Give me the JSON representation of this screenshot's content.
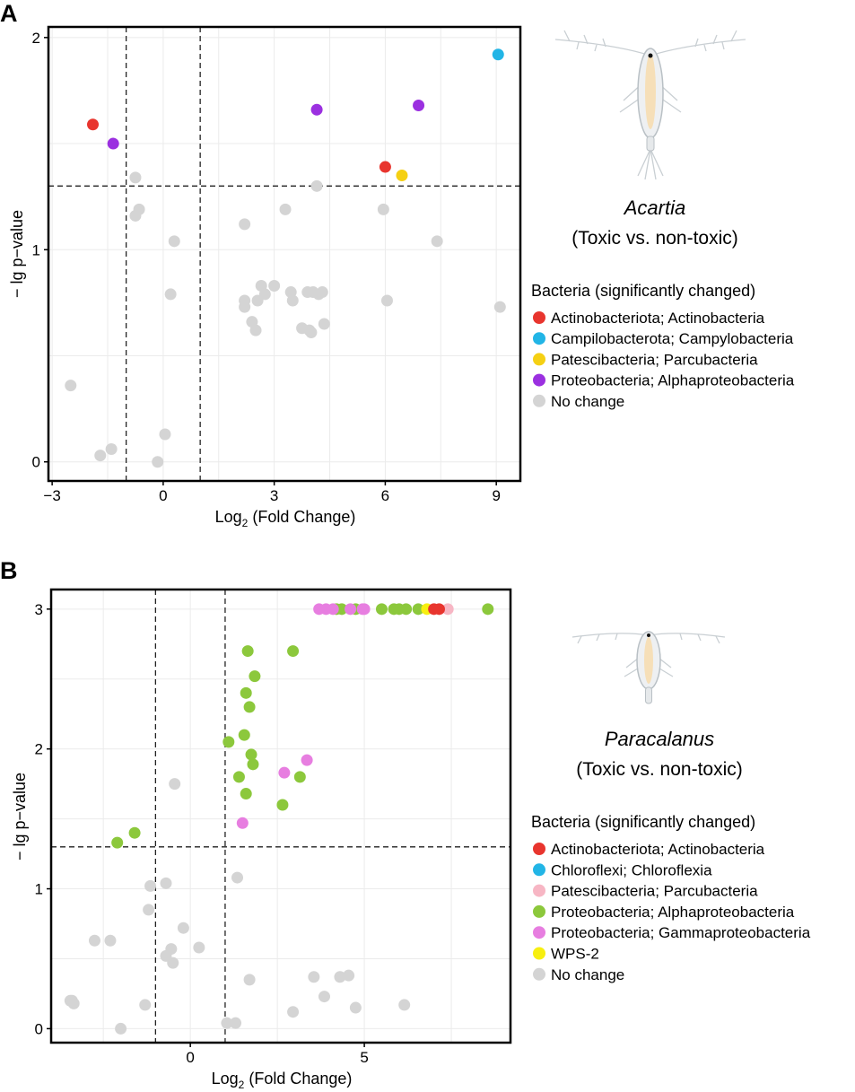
{
  "colors": {
    "actinobacteria": "#e8352e",
    "campylobacteria": "#22b5e6",
    "parcubacteria_yellow": "#f5d013",
    "alphaproteobacteria_purple": "#9b30e0",
    "parcubacteria_pink": "#f7b6c4",
    "alphaproteobacteria_green": "#8cc83c",
    "gammaproteobacteria": "#e77ee0",
    "wps2": "#f7ef10",
    "chloroflexia": "#22b5e6",
    "no_change": "#d4d4d4"
  },
  "chart_data": [
    {
      "panel_label": "A",
      "type": "scatter",
      "title": "",
      "xlabel_prefix": "Log",
      "xlabel_sub": "2",
      "xlabel_suffix": " (Fold Change)",
      "ylabel": "− lg p−value",
      "xlim": [
        -3.1,
        9.65
      ],
      "ylim": [
        -0.09,
        2.05
      ],
      "xticks": [
        -3,
        0,
        3,
        6,
        9
      ],
      "xtick_labels": [
        "−3",
        "0",
        "3",
        "6",
        "9"
      ],
      "yticks": [
        0,
        1,
        2
      ],
      "ytick_labels": [
        "0",
        "1",
        "2"
      ],
      "thresholds": {
        "vlines": [
          -1,
          1
        ],
        "hline": 1.3
      },
      "organism": "Acartia",
      "comparison": "(Toxic vs. non-toxic)",
      "legend_title": "Bacteria (significantly changed)",
      "legend": [
        {
          "label": "Actinobacteriota; Actinobacteria",
          "color": "#e8352e"
        },
        {
          "label": "Campilobacterota; Campylobacteria",
          "color": "#22b5e6"
        },
        {
          "label": "Patescibacteria; Parcubacteria",
          "color": "#f5d013"
        },
        {
          "label": "Proteobacteria; Alphaproteobacteria",
          "color": "#9b30e0"
        },
        {
          "label": "No change",
          "color": "#d4d4d4"
        }
      ],
      "series": [
        {
          "name": "No change",
          "color": "#d4d4d4",
          "points": [
            [
              -2.5,
              0.36
            ],
            [
              -1.7,
              0.03
            ],
            [
              -1.4,
              0.06
            ],
            [
              -0.15,
              0.0
            ],
            [
              0.05,
              0.13
            ],
            [
              -0.75,
              1.34
            ],
            [
              -0.75,
              1.16
            ],
            [
              -0.65,
              1.19
            ],
            [
              0.3,
              1.04
            ],
            [
              0.2,
              0.79
            ],
            [
              2.2,
              1.12
            ],
            [
              2.2,
              0.76
            ],
            [
              2.2,
              0.73
            ],
            [
              2.4,
              0.66
            ],
            [
              2.5,
              0.62
            ],
            [
              2.55,
              0.76
            ],
            [
              2.65,
              0.83
            ],
            [
              2.75,
              0.79
            ],
            [
              3.0,
              0.83
            ],
            [
              3.3,
              1.19
            ],
            [
              3.45,
              0.8
            ],
            [
              3.5,
              0.76
            ],
            [
              3.75,
              0.63
            ],
            [
              3.9,
              0.8
            ],
            [
              3.95,
              0.62
            ],
            [
              4.0,
              0.61
            ],
            [
              4.05,
              0.8
            ],
            [
              4.2,
              0.79
            ],
            [
              4.3,
              0.8
            ],
            [
              4.35,
              0.65
            ],
            [
              4.15,
              1.3
            ],
            [
              5.95,
              1.19
            ],
            [
              6.05,
              0.76
            ],
            [
              7.4,
              1.04
            ],
            [
              9.1,
              0.73
            ]
          ]
        },
        {
          "name": "Actinobacteriota; Actinobacteria",
          "color": "#e8352e",
          "points": [
            [
              -1.9,
              1.59
            ],
            [
              6.0,
              1.39
            ]
          ]
        },
        {
          "name": "Campilobacterota; Campylobacteria",
          "color": "#22b5e6",
          "points": [
            [
              9.05,
              1.92
            ]
          ]
        },
        {
          "name": "Patescibacteria; Parcubacteria",
          "color": "#f5d013",
          "points": [
            [
              6.45,
              1.35
            ]
          ]
        },
        {
          "name": "Proteobacteria; Alphaproteobacteria",
          "color": "#9b30e0",
          "points": [
            [
              -1.35,
              1.5
            ],
            [
              4.15,
              1.66
            ],
            [
              6.9,
              1.68
            ]
          ]
        }
      ]
    },
    {
      "panel_label": "B",
      "type": "scatter",
      "title": "",
      "xlabel_prefix": "Log",
      "xlabel_sub": "2",
      "xlabel_suffix": " (Fold Change)",
      "ylabel": "− lg p−value",
      "xlim": [
        -4.0,
        9.2
      ],
      "ylim": [
        -0.1,
        3.14
      ],
      "xticks": [
        0,
        5
      ],
      "xtick_labels": [
        "0",
        "5"
      ],
      "yticks": [
        0,
        1,
        2,
        3
      ],
      "ytick_labels": [
        "0",
        "1",
        "2",
        "3"
      ],
      "thresholds": {
        "vlines": [
          -1,
          1
        ],
        "hline": 1.3
      },
      "organism": "Paracalanus",
      "comparison": "(Toxic vs. non-toxic)",
      "legend_title": "Bacteria (significantly changed)",
      "legend": [
        {
          "label": "Actinobacteriota; Actinobacteria",
          "color": "#e8352e"
        },
        {
          "label": "Chloroflexi; Chloroflexia",
          "color": "#22b5e6"
        },
        {
          "label": "Patescibacteria; Parcubacteria",
          "color": "#f7b6c4"
        },
        {
          "label": "Proteobacteria; Alphaproteobacteria",
          "color": "#8cc83c"
        },
        {
          "label": "Proteobacteria; Gammaproteobacteria",
          "color": "#e77ee0"
        },
        {
          "label": "WPS-2",
          "color": "#f7ef10"
        },
        {
          "label": "No change",
          "color": "#d4d4d4"
        }
      ],
      "series": [
        {
          "name": "No change",
          "color": "#d4d4d4",
          "points": [
            [
              -3.45,
              0.2
            ],
            [
              -3.35,
              0.18
            ],
            [
              -3.4,
              0.2
            ],
            [
              -2.75,
              0.63
            ],
            [
              -2.3,
              0.63
            ],
            [
              -2.0,
              0.0
            ],
            [
              -1.3,
              0.17
            ],
            [
              -1.2,
              0.85
            ],
            [
              -1.15,
              1.02
            ],
            [
              -0.7,
              1.04
            ],
            [
              -0.7,
              0.52
            ],
            [
              -0.55,
              0.57
            ],
            [
              -0.5,
              0.47
            ],
            [
              -0.45,
              1.75
            ],
            [
              -0.2,
              0.72
            ],
            [
              0.25,
              0.58
            ],
            [
              1.05,
              0.04
            ],
            [
              1.3,
              0.04
            ],
            [
              1.35,
              1.08
            ],
            [
              1.7,
              0.35
            ],
            [
              2.95,
              0.12
            ],
            [
              3.55,
              0.37
            ],
            [
              3.85,
              0.23
            ],
            [
              4.3,
              0.37
            ],
            [
              4.55,
              0.38
            ],
            [
              4.75,
              0.15
            ],
            [
              6.15,
              0.17
            ]
          ]
        },
        {
          "name": "Proteobacteria; Alphaproteobacteria",
          "color": "#8cc83c",
          "points": [
            [
              -2.1,
              1.33
            ],
            [
              -1.6,
              1.4
            ],
            [
              1.1,
              2.05
            ],
            [
              1.4,
              1.8
            ],
            [
              1.55,
              2.1
            ],
            [
              1.6,
              2.4
            ],
            [
              1.6,
              1.68
            ],
            [
              1.65,
              2.7
            ],
            [
              1.7,
              2.3
            ],
            [
              1.75,
              1.96
            ],
            [
              1.8,
              1.89
            ],
            [
              1.85,
              2.52
            ],
            [
              2.65,
              1.6
            ],
            [
              2.95,
              2.7
            ],
            [
              3.15,
              1.8
            ],
            [
              4.2,
              3.0
            ],
            [
              4.35,
              3.0
            ],
            [
              4.75,
              3.0
            ],
            [
              5.5,
              3.0
            ],
            [
              5.85,
              3.0
            ],
            [
              6.0,
              3.0
            ],
            [
              6.2,
              3.0
            ],
            [
              6.55,
              3.0
            ],
            [
              8.55,
              3.0
            ]
          ]
        },
        {
          "name": "Proteobacteria; Gammaproteobacteria",
          "color": "#e77ee0",
          "points": [
            [
              1.5,
              1.47
            ],
            [
              2.7,
              1.83
            ],
            [
              3.35,
              1.92
            ],
            [
              3.7,
              3.0
            ],
            [
              3.9,
              3.0
            ],
            [
              4.1,
              3.0
            ],
            [
              4.6,
              3.0
            ],
            [
              4.95,
              3.0
            ],
            [
              5.0,
              3.0
            ]
          ]
        },
        {
          "name": "Chloroflexi; Chloroflexia",
          "color": "#22b5e6",
          "points": []
        },
        {
          "name": "WPS-2",
          "color": "#f7ef10",
          "points": [
            [
              6.8,
              3.0
            ]
          ]
        },
        {
          "name": "Patescibacteria; Parcubacteria",
          "color": "#f7b6c4",
          "points": [
            [
              7.4,
              3.0
            ]
          ]
        },
        {
          "name": "Actinobacteriota; Actinobacteria",
          "color": "#e8352e",
          "points": [
            [
              7.0,
              3.0
            ],
            [
              7.15,
              3.0
            ]
          ]
        }
      ]
    }
  ]
}
